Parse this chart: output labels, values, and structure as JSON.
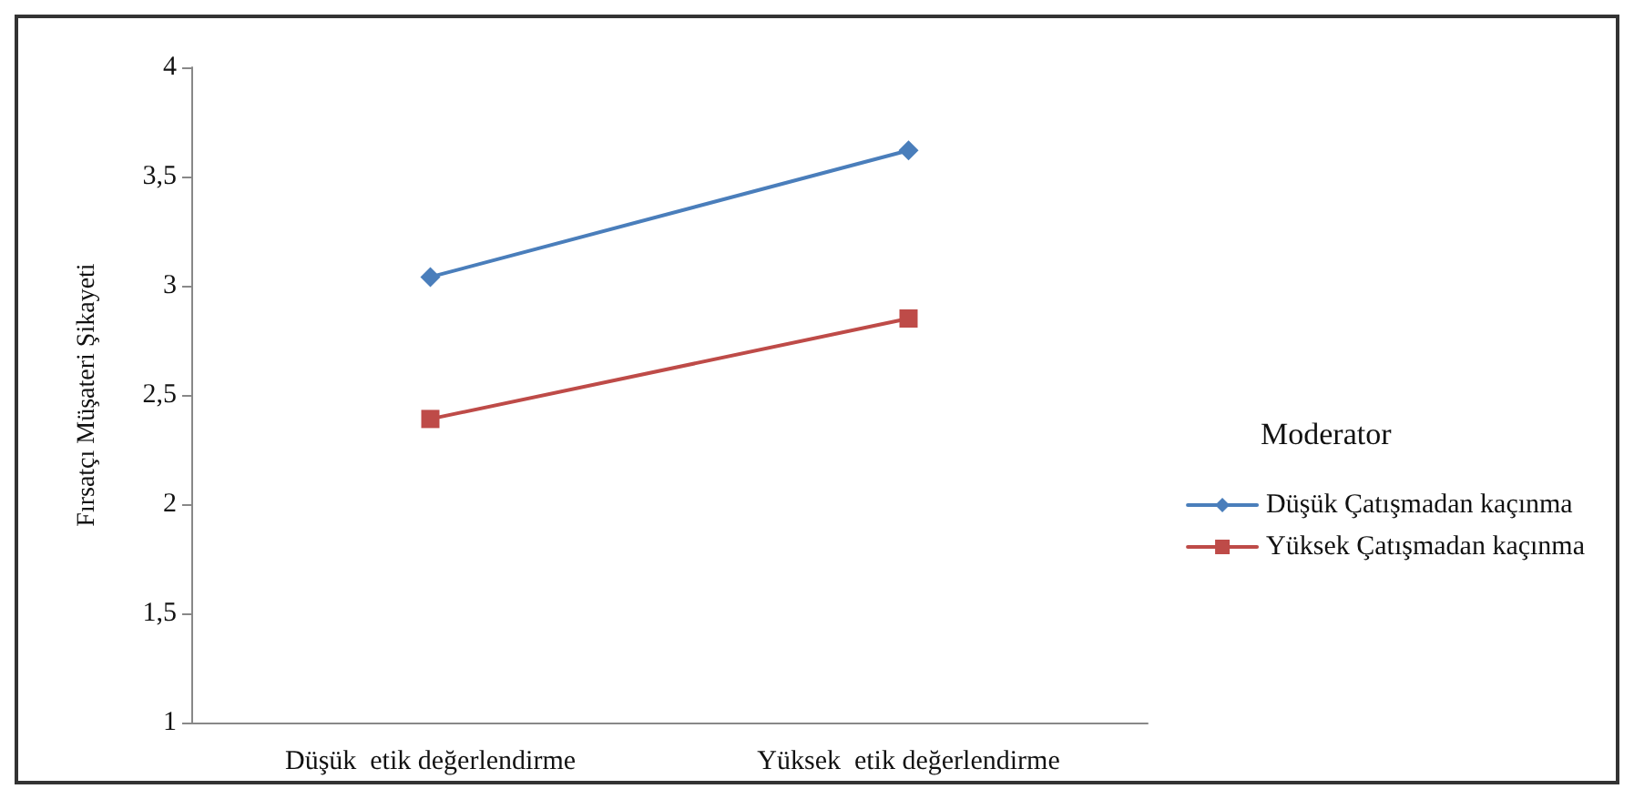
{
  "chart_data": {
    "type": "line",
    "ylabel": "Fırsatçı Müşateri Şikayeti",
    "legend_title": "Moderator",
    "categories": [
      "Düşük  etik değerlendirme",
      "Yüksek  etik değerlendirme"
    ],
    "series": [
      {
        "name": "Düşük Çatışmadan kaçınma",
        "color": "#4a7ebb",
        "marker": "diamond",
        "values": [
          3.04,
          3.62
        ]
      },
      {
        "name": "Yüksek Çatışmadan kaçınma",
        "color": "#be4b48",
        "marker": "square",
        "values": [
          2.39,
          2.85
        ]
      }
    ],
    "ylim": [
      1,
      4
    ],
    "yticks": [
      1,
      {
        "value": 1.5,
        "label": "1,5"
      },
      2,
      {
        "value": 2.5,
        "label": "2,5"
      },
      3,
      {
        "value": 3.5,
        "label": "3,5"
      },
      4
    ],
    "grid": false,
    "legend": "right",
    "line_style": "solid"
  }
}
